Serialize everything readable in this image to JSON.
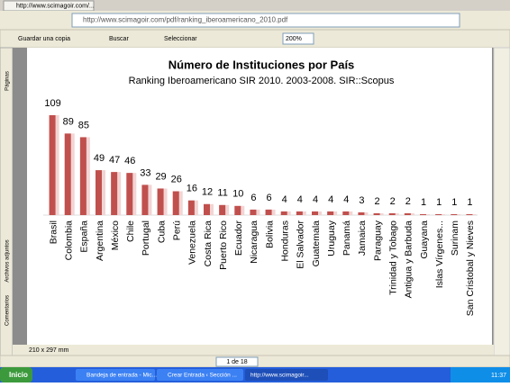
{
  "browser": {
    "tab": "http://www.scimagoir.com/...",
    "address": "http://www.scimagoir.com/pdf/ranking_iberoamericano_2010.pdf",
    "save": "Guardar una copia",
    "search": "Buscar",
    "select": "Seleccionar",
    "zoom": "200%",
    "side_tabs": [
      "Páginas",
      "Archivos adjuntos",
      "Comentarios"
    ],
    "page_size": "210 x 297 mm",
    "page_nav": "1 de 18"
  },
  "taskbar": {
    "start": "Inicio",
    "items": [
      "Bandeja de entrada - Mic...",
      "Crear Entrada ‹ Sección ...",
      "http://www.scimagoir..."
    ],
    "clock": "11:37"
  },
  "chart_data": {
    "type": "bar",
    "title": "Número de Instituciones por País",
    "subtitle": "Ranking Iberoamericano SIR 2010. 2003-2008. SIR::Scopus",
    "color": "#c0504d",
    "categories": [
      "Brasil",
      "Colombia",
      "España",
      "Argentina",
      "México",
      "Chile",
      "Portugal",
      "Cuba",
      "Perú",
      "Venezuela",
      "Costa Rica",
      "Puerto Rico",
      "Ecuador",
      "Nicaragua",
      "Bolivia",
      "Honduras",
      "El Salvador",
      "Guatemala",
      "Uruguay",
      "Panamá",
      "Jamaica",
      "Paraguay",
      "Trinidad y Tobago",
      "Antigua y Barbuda",
      "Guayana",
      "Islas Vírgenes...",
      "Surinam",
      "San Cristobal y Nieves"
    ],
    "values": [
      109,
      89,
      85,
      49,
      47,
      46,
      33,
      29,
      26,
      16,
      12,
      11,
      10,
      6,
      6,
      4,
      4,
      4,
      4,
      4,
      3,
      2,
      2,
      2,
      1,
      1,
      1,
      1
    ]
  }
}
